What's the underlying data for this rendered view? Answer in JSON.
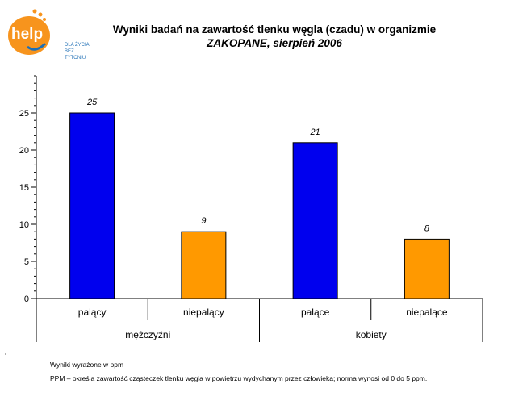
{
  "logo": {
    "brand": "help",
    "tagline_1": "DLA ŻYCIA",
    "tagline_2": "BEZ",
    "tagline_3": "TYTONIU",
    "colors": {
      "orange": "#f7941d",
      "blue": "#1f6fb5"
    }
  },
  "chart_data": {
    "type": "bar",
    "title": "Wyniki badań na zawartość tlenku węgla (czadu) w organizmie",
    "subtitle": "ZAKOPANE, sierpień 2006",
    "groups": [
      "mężczyźni",
      "kobiety"
    ],
    "categories": [
      "palący",
      "niepalący",
      "palące",
      "niepalące"
    ],
    "values": [
      25,
      9,
      21,
      8
    ],
    "colors": [
      "#0000ee",
      "#ff9900",
      "#0000ee",
      "#ff9900"
    ],
    "data_labels": [
      "25",
      "9",
      "21",
      "8"
    ],
    "ylim": [
      0,
      30
    ],
    "yticks": [
      0,
      5,
      10,
      15,
      20,
      25
    ],
    "grid": false,
    "legend": "none"
  },
  "notes": {
    "line1": "Wyniki wyrażone w ppm",
    "line2": "PPM – określa zawartość cząsteczek tlenku węgla w powietrzu wydychanym przez człowieka; norma wynosi od 0 do 5 ppm."
  }
}
